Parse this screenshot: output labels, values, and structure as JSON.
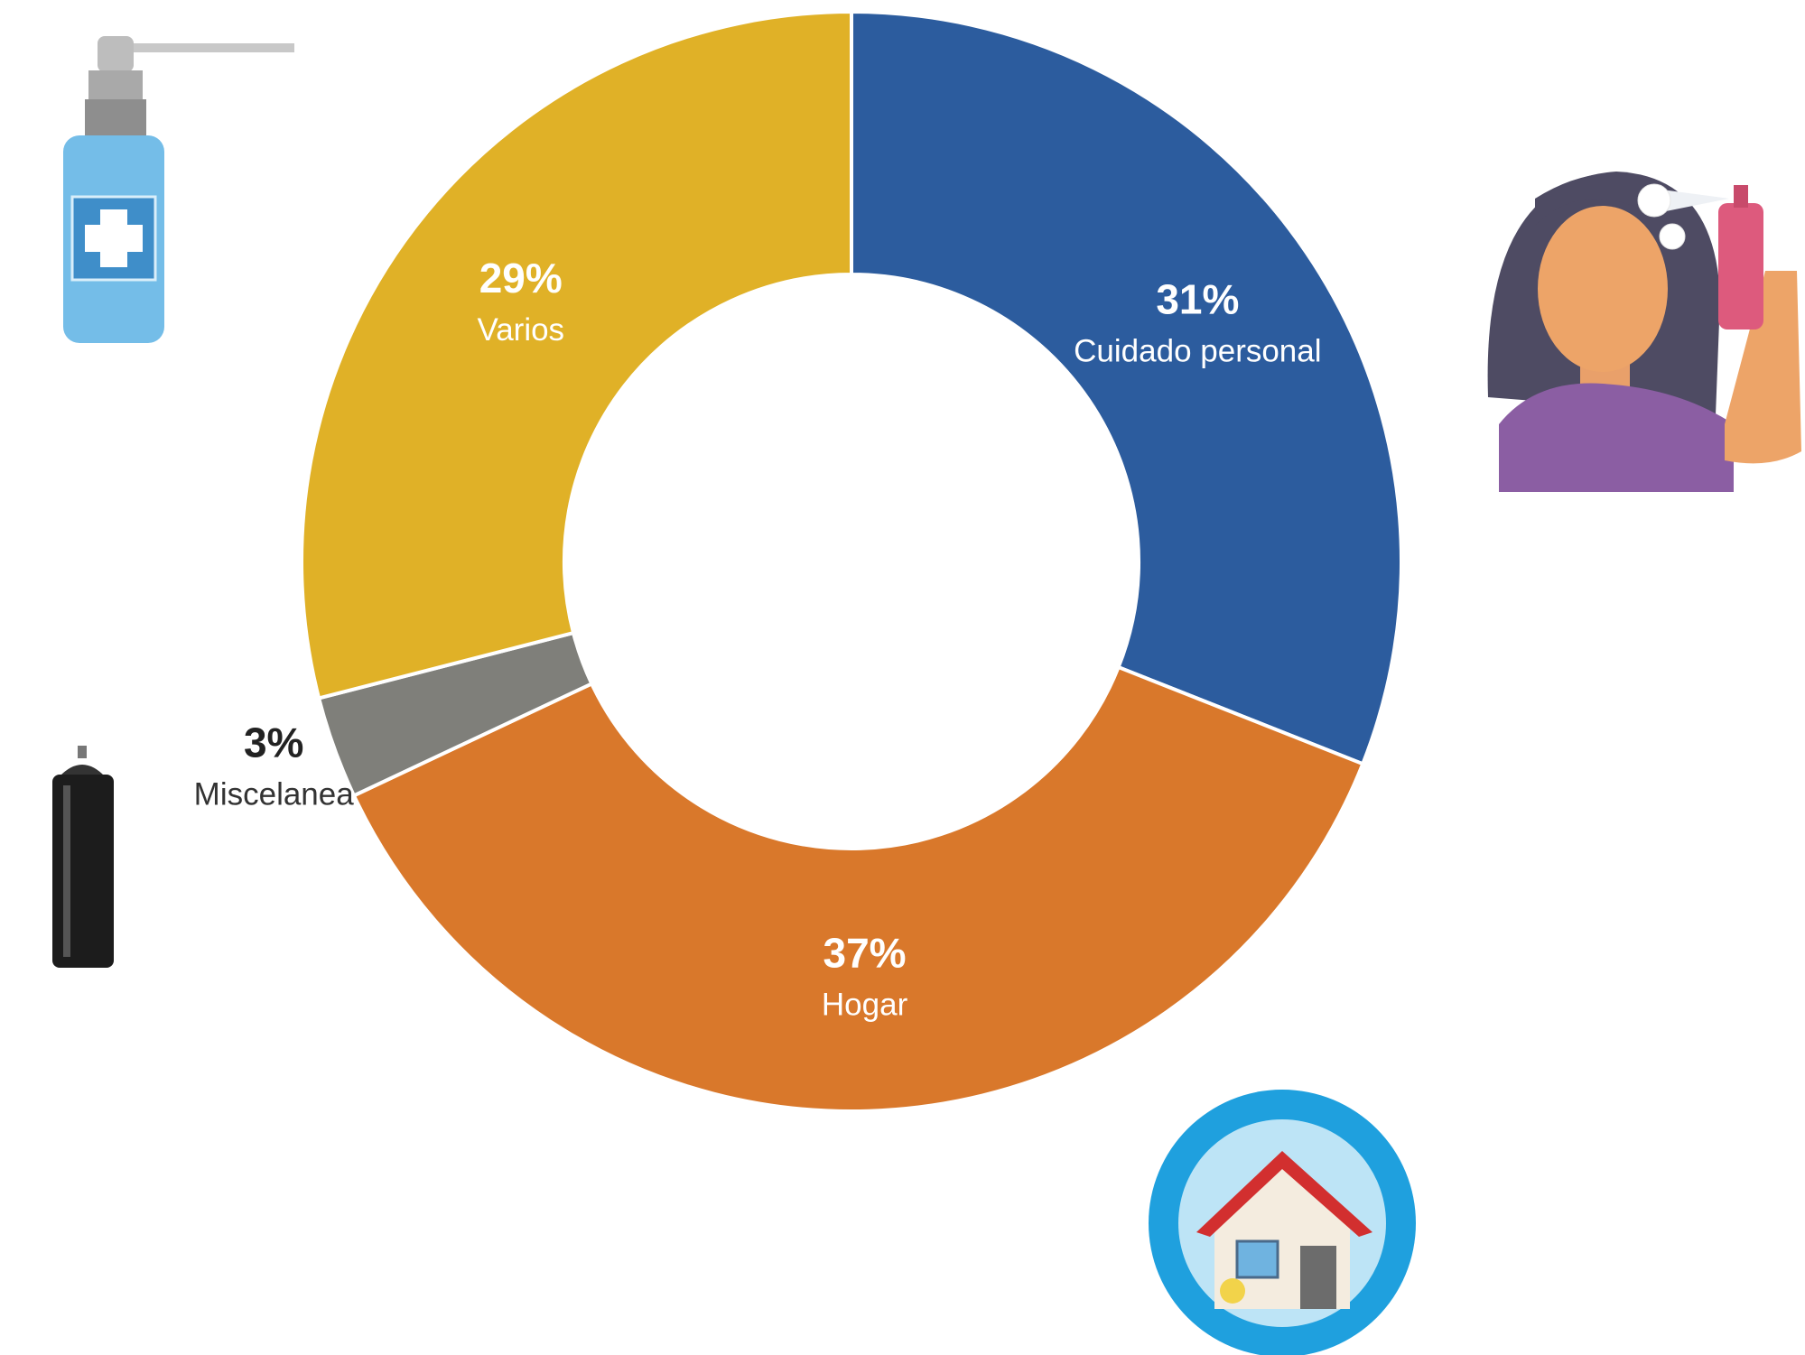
{
  "chart_data": {
    "type": "donut",
    "categories": [
      "Cuidado personal",
      "Hogar",
      "Miscelanea",
      "Varios"
    ],
    "values": [
      31,
      37,
      3,
      29
    ],
    "value_labels": [
      "31%",
      "37%",
      "3%",
      "29%"
    ],
    "colors": [
      "#2c5c9e",
      "#d9782b",
      "#7f7f7a",
      "#e0b127"
    ]
  }
}
